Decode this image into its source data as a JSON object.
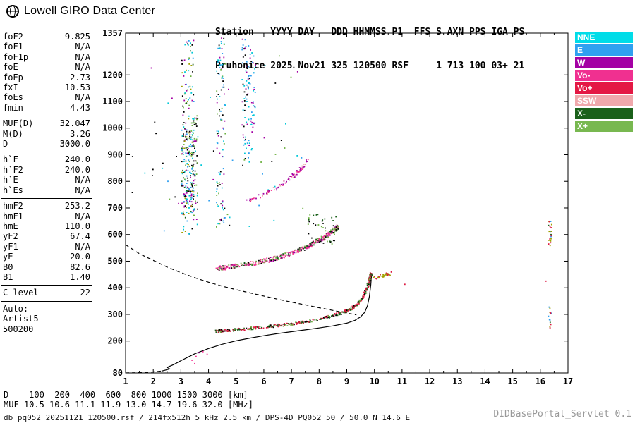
{
  "header": {
    "logo_text": "Lowell GIRO Data Center",
    "station_line1": "Station   YYYY DAY   DDD HHMMSS P1  FFS S AXN PPS IGA PS",
    "station_line2": "Pruhonice 2025 Nov21 325 120500 RSF     1 713 100 03+ 21"
  },
  "param_panel": {
    "groups": [
      {
        "rows": [
          [
            "foF2",
            "9.825"
          ],
          [
            "foF1",
            "N/A"
          ],
          [
            "foF1p",
            "N/A"
          ],
          [
            "foE",
            "N/A"
          ],
          [
            "foEp",
            "2.73"
          ],
          [
            "fxI",
            "10.53"
          ],
          [
            "foEs",
            "N/A"
          ],
          [
            "fmin",
            "4.43"
          ]
        ]
      },
      {
        "rows": [
          [
            "MUF(D)",
            "32.047"
          ],
          [
            "M(D)",
            "3.26"
          ],
          [
            "D",
            "3000.0"
          ]
        ]
      },
      {
        "rows": [
          [
            "h`F",
            "240.0"
          ],
          [
            "h`F2",
            "240.0"
          ],
          [
            "h`E",
            "N/A"
          ],
          [
            "h`Es",
            "N/A"
          ]
        ]
      },
      {
        "rows": [
          [
            "hmF2",
            "253.2"
          ],
          [
            "hmF1",
            "N/A"
          ],
          [
            "hmE",
            "110.0"
          ],
          [
            "yF2",
            "67.4"
          ],
          [
            "yF1",
            "N/A"
          ],
          [
            "yE",
            "20.0"
          ],
          [
            "B0",
            "82.6"
          ],
          [
            "B1",
            "1.40"
          ]
        ]
      },
      {
        "rows": [
          [
            "C-level",
            "22"
          ]
        ]
      },
      {
        "rows": [
          [
            "Auto:",
            ""
          ],
          [
            "Artist5",
            ""
          ],
          [
            "500200",
            ""
          ]
        ]
      }
    ]
  },
  "legend": {
    "items": [
      {
        "label": "NNE",
        "color": "#00dce8"
      },
      {
        "label": "E",
        "color": "#30a0f0"
      },
      {
        "label": "W",
        "color": "#a400a4"
      },
      {
        "label": "Vo-",
        "color": "#f03090"
      },
      {
        "label": "Vo+",
        "color": "#e41844"
      },
      {
        "label": "SSW",
        "color": "#f0a8ac"
      },
      {
        "label": "X-",
        "color": "#1a601a"
      },
      {
        "label": "X+",
        "color": "#78b850"
      }
    ]
  },
  "distance_muf_table": {
    "d_label": "D",
    "d_values": [
      "100",
      "200",
      "400",
      "600",
      "800",
      "1000",
      "1500",
      "3000"
    ],
    "d_unit": "[km]",
    "muf_label": "MUF",
    "muf_values": [
      "10.5",
      "10.6",
      "11.1",
      "11.9",
      "13.0",
      "14.7",
      "19.6",
      "32.0"
    ],
    "muf_unit": "[MHz]"
  },
  "bottom": {
    "status_line": "db pq052 20251121 120500.rsf / 214fx512h 5 kHz 2.5 km / DPS-4D PQ052 50 / 50.0 N 14.6 E",
    "servlet_label": "DIDBasePortal_Servlet 0.1"
  },
  "chart_data": {
    "type": "scatter",
    "title": "Pruhonice ionogram 2025 Nov21 120500",
    "xlabel": "[MHz]",
    "ylabel": "[km]",
    "xlim": [
      1,
      17
    ],
    "ylim": [
      80,
      1357
    ],
    "grid": false,
    "x_ticks": [
      1,
      2,
      3,
      4,
      5,
      6,
      7,
      8,
      9,
      10,
      11,
      12,
      13,
      14,
      15,
      16,
      17
    ],
    "y_tick_labels": [
      1357,
      1200,
      1100,
      1000,
      900,
      800,
      700,
      600,
      500,
      400,
      300,
      200,
      80
    ],
    "palette": {
      "NNE": "#00c8d8",
      "E": "#30a0f0",
      "W": "#a400a4",
      "Vo-": "#f03090",
      "Vo+": "#dc1840",
      "SSW": "#f0a8ac",
      "X-": "#1a601a",
      "X+": "#6cb040",
      "black": "#000000",
      "olive": "#a0a000"
    },
    "curves": [
      {
        "name": "transmission-curve",
        "style": "dashed",
        "color": "black",
        "points": [
          [
            1,
            562
          ],
          [
            1.5,
            528
          ],
          [
            2,
            503
          ],
          [
            2.5,
            478
          ],
          [
            3,
            457
          ],
          [
            3.5,
            438
          ],
          [
            4,
            421
          ],
          [
            4.5,
            406
          ],
          [
            5,
            393
          ],
          [
            5.5,
            381
          ],
          [
            6,
            369
          ],
          [
            6.5,
            357
          ],
          [
            7,
            346
          ],
          [
            7.5,
            336
          ],
          [
            8,
            325
          ],
          [
            8.5,
            315
          ],
          [
            9,
            305
          ],
          [
            9.35,
            298
          ]
        ]
      },
      {
        "name": "profile-extrapolated",
        "style": "dashed",
        "color": "black",
        "points": [
          [
            1,
            80
          ],
          [
            1.5,
            81
          ],
          [
            2,
            84
          ],
          [
            2.3,
            87
          ]
        ]
      },
      {
        "name": "profile-curve",
        "style": "solid",
        "color": "black",
        "points": [
          [
            2.3,
            87
          ],
          [
            2.6,
            95
          ],
          [
            2.5,
            101
          ],
          [
            2.75,
            112
          ],
          [
            3,
            126
          ],
          [
            3.5,
            152
          ],
          [
            4,
            172
          ],
          [
            4.5,
            188
          ],
          [
            5,
            201
          ],
          [
            5.5,
            211
          ],
          [
            6,
            220
          ],
          [
            6.5,
            228
          ],
          [
            7,
            235
          ],
          [
            7.5,
            242
          ],
          [
            8,
            249
          ],
          [
            8.5,
            257
          ],
          [
            9,
            267
          ],
          [
            9.3,
            278
          ],
          [
            9.5,
            291
          ],
          [
            9.65,
            308
          ],
          [
            9.75,
            333
          ],
          [
            9.82,
            368
          ],
          [
            9.87,
            412
          ],
          [
            9.9,
            456
          ]
        ]
      }
    ],
    "echo_traces": [
      {
        "name": "F-trace-1st-hop",
        "colors": [
          "Vo+",
          "Vo+",
          "X-",
          "black",
          "Vo+",
          "X-",
          "X+"
        ],
        "count": 450,
        "jitter_x": 0.04,
        "jitter_y": 5,
        "points": [
          [
            4.25,
            236
          ],
          [
            4.5,
            238
          ],
          [
            5,
            242
          ],
          [
            5.5,
            247
          ],
          [
            6,
            252
          ],
          [
            6.5,
            258
          ],
          [
            7,
            264
          ],
          [
            7.5,
            272
          ],
          [
            8,
            282
          ],
          [
            8.3,
            290
          ],
          [
            8.6,
            299
          ],
          [
            8.9,
            309
          ],
          [
            9.1,
            318
          ],
          [
            9.3,
            331
          ],
          [
            9.45,
            346
          ],
          [
            9.6,
            366
          ],
          [
            9.7,
            389
          ],
          [
            9.78,
            413
          ],
          [
            9.84,
            436
          ],
          [
            9.88,
            452
          ]
        ]
      },
      {
        "name": "F-trace-2nd-hop",
        "colors": [
          "Vo-",
          "Vo-",
          "W",
          "Vo-",
          "X-",
          "black",
          "X+",
          "SSW"
        ],
        "count": 420,
        "jitter_x": 0.05,
        "jitter_y": 8,
        "points": [
          [
            4.3,
            472
          ],
          [
            4.6,
            476
          ],
          [
            5,
            482
          ],
          [
            5.5,
            490
          ],
          [
            6,
            500
          ],
          [
            6.4,
            510
          ],
          [
            6.8,
            522
          ],
          [
            7.2,
            536
          ],
          [
            7.5,
            550
          ],
          [
            7.8,
            566
          ],
          [
            8.1,
            584
          ],
          [
            8.35,
            602
          ],
          [
            8.55,
            618
          ],
          [
            8.7,
            632
          ]
        ]
      },
      {
        "name": "F-trace-3rd-hop",
        "colors": [
          "W",
          "Vo-",
          "W",
          "SSW"
        ],
        "count": 90,
        "jitter_x": 0.05,
        "jitter_y": 7,
        "points": [
          [
            5.35,
            722
          ],
          [
            5.7,
            736
          ],
          [
            6.1,
            755
          ],
          [
            6.5,
            778
          ],
          [
            6.9,
            806
          ],
          [
            7.2,
            832
          ],
          [
            7.45,
            858
          ],
          [
            7.6,
            880
          ]
        ]
      },
      {
        "name": "X-mode-cusp",
        "colors": [
          "olive",
          "olive",
          "Vo+"
        ],
        "count": 40,
        "jitter_x": 0.06,
        "jitter_y": 6,
        "points": [
          [
            10.0,
            436
          ],
          [
            10.2,
            444
          ],
          [
            10.4,
            450
          ],
          [
            10.6,
            454
          ]
        ]
      }
    ],
    "noise_columns": [
      {
        "name": "interference-column-1",
        "x": 3.25,
        "x_spread": 0.22,
        "colors": [
          "NNE",
          "X+",
          "E",
          "W",
          "olive",
          "X-",
          "black"
        ],
        "segments": [
          [
            590,
            1330,
            150
          ],
          [
            700,
            1000,
            120
          ]
        ]
      },
      {
        "name": "interference-column-2",
        "x": 3.5,
        "x_spread": 0.12,
        "colors": [
          "X+",
          "NNE",
          "W",
          "black"
        ],
        "segments": [
          [
            620,
            1050,
            70
          ]
        ]
      },
      {
        "name": "interference-column-3",
        "x": 4.45,
        "x_spread": 0.16,
        "colors": [
          "NNE",
          "W",
          "X+",
          "E",
          "black"
        ],
        "segments": [
          [
            640,
            1340,
            110
          ]
        ]
      },
      {
        "name": "interference-column-4",
        "x": 5.35,
        "x_spread": 0.14,
        "colors": [
          "NNE",
          "W",
          "E",
          "black"
        ],
        "segments": [
          [
            850,
            1340,
            70
          ]
        ]
      },
      {
        "name": "interference-column-5",
        "x": 5.6,
        "x_spread": 0.1,
        "colors": [
          "NNE",
          "E",
          "W"
        ],
        "segments": [
          [
            900,
            1300,
            40
          ]
        ]
      },
      {
        "name": "second-hop-spread",
        "x": 8.15,
        "x_spread": 0.55,
        "colors": [
          "X+",
          "X-",
          "black"
        ],
        "segments": [
          [
            560,
            680,
            45
          ]
        ]
      },
      {
        "name": "right-edge-column",
        "x": 16.35,
        "x_spread": 0.06,
        "colors": [
          "olive",
          "E",
          "Vo+",
          "X-"
        ],
        "segments": [
          [
            555,
            650,
            22
          ],
          [
            235,
            330,
            14
          ]
        ]
      }
    ],
    "sparse_noise": {
      "name": "sparse-noise",
      "x_range": [
        1.1,
        7.5
      ],
      "y_range": [
        600,
        1330
      ],
      "count": 60,
      "colors": [
        "black",
        "NNE",
        "W",
        "X+",
        "E"
      ]
    },
    "sporadic_points": [
      {
        "x": 3.4,
        "y": 128,
        "color": "Vo-"
      },
      {
        "x": 3.55,
        "y": 142,
        "color": "Vo-"
      },
      {
        "x": 3.65,
        "y": 156,
        "color": "W"
      },
      {
        "x": 3.8,
        "y": 160,
        "color": "Vo-"
      },
      {
        "x": 3.95,
        "y": 150,
        "color": "Vo-"
      },
      {
        "x": 3.5,
        "y": 115,
        "color": "Vo-"
      },
      {
        "x": 11.1,
        "y": 413,
        "color": "Vo+"
      },
      {
        "x": 16.2,
        "y": 425,
        "color": "Vo+"
      },
      {
        "x": 2.1,
        "y": 980,
        "color": "black"
      },
      {
        "x": 1.25,
        "y": 893,
        "color": "black"
      },
      {
        "x": 2.35,
        "y": 868,
        "color": "black"
      }
    ]
  }
}
